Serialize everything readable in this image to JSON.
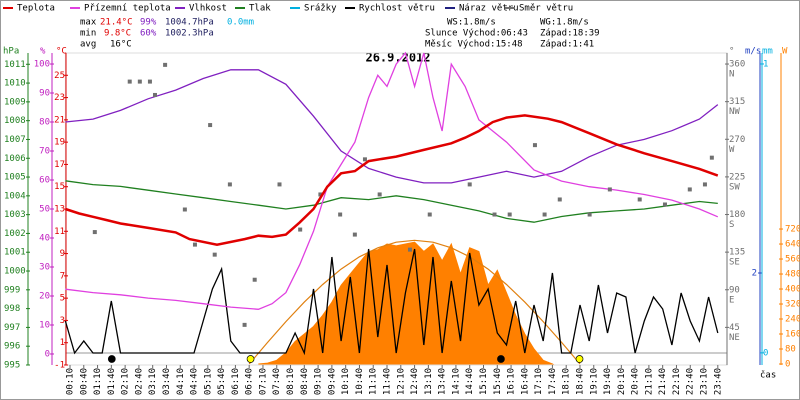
{
  "chart_data": {
    "type": "line",
    "title": "26.9.2012",
    "x_label": "čas",
    "xlim": [
      0,
      1440
    ],
    "xticks": [
      {
        "value": 10,
        "label": "00:10"
      },
      {
        "value": 40,
        "label": "00:40"
      },
      {
        "value": 70,
        "label": "01:10"
      },
      {
        "value": 100,
        "label": "01:40"
      },
      {
        "value": 130,
        "label": "02:10"
      },
      {
        "value": 160,
        "label": "02:40"
      },
      {
        "value": 190,
        "label": "03:10"
      },
      {
        "value": 220,
        "label": "03:40"
      },
      {
        "value": 250,
        "label": "04:10"
      },
      {
        "value": 280,
        "label": "04:40"
      },
      {
        "value": 310,
        "label": "05:10"
      },
      {
        "value": 340,
        "label": "05:40"
      },
      {
        "value": 370,
        "label": "06:10"
      },
      {
        "value": 400,
        "label": "06:40"
      },
      {
        "value": 430,
        "label": "07:10"
      },
      {
        "value": 460,
        "label": "07:40"
      },
      {
        "value": 490,
        "label": "08:10"
      },
      {
        "value": 520,
        "label": "08:40"
      },
      {
        "value": 550,
        "label": "09:10"
      },
      {
        "value": 580,
        "label": "09:40"
      },
      {
        "value": 610,
        "label": "10:10"
      },
      {
        "value": 640,
        "label": "10:40"
      },
      {
        "value": 670,
        "label": "11:10"
      },
      {
        "value": 700,
        "label": "11:40"
      },
      {
        "value": 730,
        "label": "12:10"
      },
      {
        "value": 760,
        "label": "12:40"
      },
      {
        "value": 790,
        "label": "13:10"
      },
      {
        "value": 820,
        "label": "13:40"
      },
      {
        "value": 850,
        "label": "14:10"
      },
      {
        "value": 880,
        "label": "14:40"
      },
      {
        "value": 910,
        "label": "15:10"
      },
      {
        "value": 940,
        "label": "15:40"
      },
      {
        "value": 970,
        "label": "16:10"
      },
      {
        "value": 1000,
        "label": "16:40"
      },
      {
        "value": 1030,
        "label": "17:10"
      },
      {
        "value": 1060,
        "label": "17:40"
      },
      {
        "value": 1090,
        "label": "18:10"
      },
      {
        "value": 1120,
        "label": "18:40"
      },
      {
        "value": 1150,
        "label": "19:10"
      },
      {
        "value": 1180,
        "label": "19:40"
      },
      {
        "value": 1210,
        "label": "20:10"
      },
      {
        "value": 1240,
        "label": "20:40"
      },
      {
        "value": 1270,
        "label": "21:10"
      },
      {
        "value": 1300,
        "label": "21:40"
      },
      {
        "value": 1330,
        "label": "22:10"
      },
      {
        "value": 1360,
        "label": "22:40"
      },
      {
        "value": 1390,
        "label": "23:10"
      },
      {
        "value": 1420,
        "label": "23:40"
      }
    ],
    "axes": {
      "hpa": {
        "label": "hPa",
        "color": "#208020",
        "lim": [
          995,
          1011.6
        ],
        "ticks": [
          995,
          996,
          997,
          998,
          999,
          1000,
          1001,
          1002,
          1003,
          1004,
          1005,
          1006,
          1007,
          1008,
          1009,
          1010,
          1011
        ]
      },
      "pct": {
        "label": "%",
        "color": "#c020c0",
        "lim": [
          -3.8,
          103.8
        ],
        "ticks": [
          0,
          10,
          20,
          30,
          40,
          50,
          60,
          70,
          80,
          90,
          100
        ]
      },
      "temp": {
        "label": "°C",
        "color": "#e00000",
        "lim": [
          -1,
          27
        ],
        "ticks": [
          -1,
          1,
          3,
          5,
          7,
          9,
          11,
          13,
          15,
          17,
          19,
          21,
          23,
          25
        ]
      },
      "deg": {
        "label": "°",
        "color": "#707070",
        "lim": [
          0,
          373.2
        ],
        "ticks": [
          45,
          90,
          135,
          180,
          225,
          270,
          315,
          360
        ],
        "compass": [
          "NE",
          "E",
          "SE",
          "S",
          "SW",
          "W",
          "NW",
          "N"
        ]
      },
      "ms": {
        "label": "m/s",
        "color": "#2040c0",
        "lim": [
          -0.3,
          7.5
        ],
        "ticks": [
          2
        ]
      },
      "mm": {
        "label": "mm",
        "color": "#00b0e0",
        "lim": [
          -0.042,
          1.038
        ],
        "ticks": [
          0,
          1
        ]
      },
      "w": {
        "label": "W",
        "color": "#ff8000",
        "lim": [
          -5.3,
          1659
        ],
        "ticks": [
          0,
          80,
          160,
          240,
          320,
          400,
          480,
          560,
          640,
          720
        ]
      }
    },
    "series": [
      {
        "name": "Teplota",
        "color": "#e00000",
        "axis": "temp",
        "kind": "line",
        "x": [
          0,
          30,
          60,
          90,
          120,
          180,
          240,
          270,
          330,
          390,
          420,
          450,
          480,
          510,
          540,
          570,
          600,
          630,
          660,
          720,
          780,
          840,
          870,
          900,
          930,
          960,
          1000,
          1050,
          1080,
          1140,
          1200,
          1260,
          1320,
          1380,
          1420
        ],
        "values": [
          13,
          12.6,
          12.3,
          12,
          11.7,
          11.3,
          10.9,
          10.3,
          9.8,
          10.3,
          10.6,
          10.5,
          10.7,
          11.8,
          13,
          15,
          16.2,
          16.4,
          17.3,
          17.7,
          18.3,
          18.9,
          19.4,
          20,
          20.8,
          21.2,
          21.4,
          21.1,
          20.8,
          19.8,
          18.8,
          18,
          17.3,
          16.6,
          16
        ]
      },
      {
        "name": "Přízemní teplota",
        "color": "#e040e0",
        "axis": "temp",
        "kind": "line",
        "x": [
          0,
          60,
          120,
          180,
          240,
          300,
          360,
          420,
          450,
          480,
          510,
          540,
          570,
          600,
          630,
          660,
          680,
          700,
          720,
          740,
          760,
          780,
          800,
          820,
          840,
          870,
          900,
          930,
          960,
          1020,
          1080,
          1140,
          1200,
          1260,
          1320,
          1380,
          1420
        ],
        "values": [
          5.8,
          5.5,
          5.3,
          5,
          4.8,
          4.5,
          4.2,
          4,
          4.5,
          5.5,
          8,
          11,
          15,
          17,
          19,
          23,
          25,
          24,
          26,
          27,
          24,
          27,
          23,
          20,
          26,
          24,
          21,
          20,
          19,
          16.5,
          15.5,
          15,
          14.7,
          14.3,
          13.8,
          13,
          12.3
        ]
      },
      {
        "name": "Vlhkost",
        "color": "#8020c0",
        "axis": "pct",
        "kind": "line",
        "x": [
          0,
          60,
          120,
          180,
          240,
          300,
          360,
          420,
          480,
          540,
          600,
          660,
          720,
          780,
          840,
          900,
          960,
          1020,
          1080,
          1140,
          1200,
          1260,
          1320,
          1380,
          1420
        ],
        "values": [
          80,
          81,
          84,
          88,
          91,
          95,
          98,
          98,
          93,
          82,
          70,
          64,
          61,
          59,
          59,
          61,
          63,
          61,
          63,
          68,
          72,
          74,
          77,
          81,
          86
        ]
      },
      {
        "name": "Tlak",
        "color": "#208020",
        "axis": "hpa",
        "kind": "line",
        "x": [
          0,
          60,
          120,
          180,
          240,
          300,
          360,
          420,
          480,
          540,
          600,
          660,
          720,
          780,
          840,
          900,
          960,
          1020,
          1080,
          1140,
          1200,
          1260,
          1320,
          1380,
          1420
        ],
        "values": [
          1004.8,
          1004.6,
          1004.5,
          1004.3,
          1004.1,
          1003.9,
          1003.7,
          1003.5,
          1003.3,
          1003.5,
          1003.9,
          1003.8,
          1004,
          1003.8,
          1003.5,
          1003.2,
          1002.8,
          1002.6,
          1002.9,
          1003.1,
          1003.2,
          1003.3,
          1003.5,
          1003.7,
          1003.6
        ]
      },
      {
        "name": "Srážky",
        "color": "#00b0e0",
        "axis": "mm",
        "kind": "line"
      },
      {
        "name": "Rychlost větru",
        "color": "#000000",
        "axis": "ms",
        "kind": "line",
        "x": [
          0,
          20,
          40,
          60,
          80,
          100,
          120,
          140,
          160,
          180,
          200,
          220,
          240,
          260,
          280,
          300,
          320,
          340,
          360,
          380,
          400,
          420,
          440,
          460,
          480,
          500,
          520,
          540,
          560,
          580,
          600,
          620,
          640,
          660,
          680,
          700,
          720,
          740,
          760,
          780,
          800,
          820,
          840,
          860,
          880,
          900,
          920,
          940,
          960,
          980,
          1000,
          1020,
          1040,
          1060,
          1080,
          1100,
          1120,
          1140,
          1160,
          1180,
          1200,
          1220,
          1240,
          1260,
          1280,
          1300,
          1320,
          1340,
          1360,
          1380,
          1400,
          1420
        ],
        "values": [
          0.8,
          0,
          0.3,
          0,
          0,
          1.3,
          0,
          0,
          0,
          0,
          0,
          0,
          0,
          0,
          0,
          0.8,
          1.6,
          2.1,
          0.3,
          0,
          0,
          0,
          0,
          0,
          0,
          0.5,
          0,
          1.6,
          0,
          2.4,
          0.3,
          1.9,
          0,
          2.6,
          0.4,
          2.2,
          0,
          1.5,
          2.6,
          0.2,
          2.4,
          0,
          1.8,
          0.3,
          2.5,
          1.2,
          1.6,
          0.5,
          0.2,
          1.3,
          0,
          1.2,
          0.3,
          2,
          0,
          0,
          1.2,
          0.3,
          1.7,
          0.5,
          1.5,
          1.4,
          0,
          0.8,
          1.4,
          1.1,
          0.2,
          1.5,
          0.8,
          0.3,
          1.4,
          0.5
        ]
      },
      {
        "name": "Náraz větru",
        "color": "#202080",
        "axis": "ms",
        "kind": "line"
      },
      {
        "name": "Směr větru",
        "color": "#707070",
        "axis": "deg",
        "kind": "points",
        "x": [
          64,
          140,
          162,
          184,
          195,
          217,
          260,
          282,
          315,
          325,
          358,
          390,
          412,
          466,
          511,
          555,
          598,
          630,
          652,
          684,
          750,
          793,
          880,
          934,
          967,
          1022,
          1043,
          1076,
          1141,
          1185,
          1250,
          1305,
          1359,
          1392,
          1407
        ],
        "values": [
          159,
          339,
          339,
          339,
          323,
          359,
          186,
          144,
          287,
          132,
          216,
          48,
          102,
          216,
          162,
          204,
          180,
          156,
          246,
          204,
          138,
          180,
          216,
          180,
          180,
          263,
          180,
          198,
          180,
          210,
          198,
          192,
          210,
          216,
          248
        ]
      }
    ],
    "radiation": {
      "color": "#ff8000",
      "axis": "w",
      "x": [
        420,
        440,
        460,
        480,
        500,
        520,
        540,
        560,
        580,
        600,
        620,
        640,
        660,
        680,
        700,
        720,
        740,
        760,
        780,
        800,
        820,
        840,
        860,
        880,
        900,
        920,
        940,
        960,
        980,
        1000,
        1020,
        1040,
        1060
      ],
      "values": [
        0,
        5,
        20,
        60,
        120,
        160,
        200,
        260,
        330,
        420,
        480,
        540,
        600,
        610,
        640,
        630,
        640,
        650,
        600,
        640,
        550,
        640,
        480,
        620,
        600,
        420,
        500,
        380,
        260,
        160,
        80,
        20,
        0
      ]
    },
    "radiation_theory": {
      "color": "#e08010",
      "axis": "w",
      "x": [
        400,
        440,
        480,
        520,
        560,
        600,
        640,
        680,
        720,
        760,
        800,
        840,
        880,
        920,
        960,
        1000,
        1040,
        1080,
        1120
      ],
      "values": [
        0,
        115,
        226,
        330,
        424,
        506,
        572,
        620,
        650,
        660,
        650,
        620,
        572,
        506,
        424,
        330,
        226,
        115,
        0
      ]
    },
    "stats": {
      "max": {
        "label": "max",
        "temp": "21.4°C",
        "hum": "99%",
        "press": "1004.7hPa",
        "rain": "0.0mm"
      },
      "min": {
        "label": "min",
        "temp": "9.8°C",
        "hum": "60%",
        "press": "1002.3hPa"
      },
      "avg": {
        "label": "avg",
        "temp": "16°C"
      },
      "ws": "WS:1.8m/s",
      "wg": "WG:1.8m/s",
      "sun": {
        "rise": "Slunce Východ:06:43",
        "set": "Západ:18:39",
        "color": "#ffff00"
      },
      "moon": {
        "rise": "Měsíc Východ:15:48",
        "set": "Západ:1:41",
        "color": "#000000"
      }
    }
  }
}
